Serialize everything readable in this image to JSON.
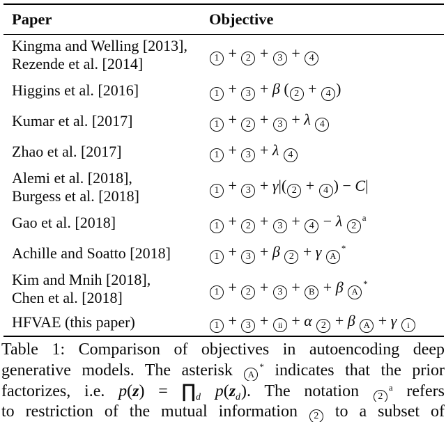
{
  "colors": {
    "background": "#ffffff",
    "text": "#0a0a0a",
    "rule": "#000000"
  },
  "table": {
    "headers": {
      "paper": "Paper",
      "objective": "Objective"
    },
    "rows": [
      {
        "paper_lines": [
          "Kingma and Welling [2013],",
          "Rezende et al. [2014]"
        ],
        "formula": [
          {
            "k": "c",
            "v": "1"
          },
          {
            "k": "txt",
            "v": " + "
          },
          {
            "k": "c",
            "v": "2"
          },
          {
            "k": "txt",
            "v": " + "
          },
          {
            "k": "c",
            "v": "3"
          },
          {
            "k": "txt",
            "v": " + "
          },
          {
            "k": "c",
            "v": "4"
          }
        ]
      },
      {
        "paper_lines": [
          "Higgins et al. [2016]"
        ],
        "formula": [
          {
            "k": "c",
            "v": "1"
          },
          {
            "k": "txt",
            "v": " + "
          },
          {
            "k": "c",
            "v": "3"
          },
          {
            "k": "txt",
            "v": " + "
          },
          {
            "k": "it",
            "v": "β"
          },
          {
            "k": "txt",
            "v": " ("
          },
          {
            "k": "c",
            "v": "2"
          },
          {
            "k": "txt",
            "v": " + "
          },
          {
            "k": "c",
            "v": "4"
          },
          {
            "k": "txt",
            "v": ")"
          }
        ]
      },
      {
        "paper_lines": [
          "Kumar et al. [2017]"
        ],
        "formula": [
          {
            "k": "c",
            "v": "1"
          },
          {
            "k": "txt",
            "v": " + "
          },
          {
            "k": "c",
            "v": "2"
          },
          {
            "k": "txt",
            "v": " + "
          },
          {
            "k": "c",
            "v": "3"
          },
          {
            "k": "txt",
            "v": " + "
          },
          {
            "k": "it",
            "v": "λ "
          },
          {
            "k": "c",
            "v": "4"
          }
        ]
      },
      {
        "paper_lines": [
          "Zhao et al. [2017]"
        ],
        "formula": [
          {
            "k": "c",
            "v": "1"
          },
          {
            "k": "txt",
            "v": " + "
          },
          {
            "k": "c",
            "v": "3"
          },
          {
            "k": "txt",
            "v": " + "
          },
          {
            "k": "it",
            "v": "λ "
          },
          {
            "k": "c",
            "v": "4"
          }
        ]
      },
      {
        "paper_lines": [
          "Alemi et al. [2018],",
          "Burgess et al. [2018]"
        ],
        "formula": [
          {
            "k": "c",
            "v": "1"
          },
          {
            "k": "txt",
            "v": " + "
          },
          {
            "k": "c",
            "v": "3"
          },
          {
            "k": "txt",
            "v": " + "
          },
          {
            "k": "it",
            "v": "γ"
          },
          {
            "k": "txt",
            "v": "|("
          },
          {
            "k": "c",
            "v": "2"
          },
          {
            "k": "txt",
            "v": " + "
          },
          {
            "k": "c",
            "v": "4"
          },
          {
            "k": "txt",
            "v": ") − "
          },
          {
            "k": "it",
            "v": "C"
          },
          {
            "k": "txt",
            "v": "|"
          }
        ]
      },
      {
        "paper_lines": [
          "Gao et al. [2018]"
        ],
        "formula": [
          {
            "k": "c",
            "v": "1"
          },
          {
            "k": "txt",
            "v": " + "
          },
          {
            "k": "c",
            "v": "2"
          },
          {
            "k": "txt",
            "v": " + "
          },
          {
            "k": "c",
            "v": "3"
          },
          {
            "k": "txt",
            "v": " + "
          },
          {
            "k": "c",
            "v": "4"
          },
          {
            "k": "txt",
            "v": " − "
          },
          {
            "k": "it",
            "v": "λ "
          },
          {
            "k": "c",
            "v": "2"
          },
          {
            "k": "sup",
            "v": "a"
          }
        ]
      },
      {
        "paper_lines": [
          "Achille and Soatto [2018]"
        ],
        "formula": [
          {
            "k": "c",
            "v": "1"
          },
          {
            "k": "txt",
            "v": " + "
          },
          {
            "k": "c",
            "v": "3"
          },
          {
            "k": "txt",
            "v": " + "
          },
          {
            "k": "it",
            "v": "β "
          },
          {
            "k": "c",
            "v": "2"
          },
          {
            "k": "txt",
            "v": " + "
          },
          {
            "k": "it",
            "v": "γ "
          },
          {
            "k": "c",
            "v": "A"
          },
          {
            "k": "sup",
            "v": "*"
          }
        ]
      },
      {
        "paper_lines": [
          "Kim and Mnih [2018],",
          "Chen et al. [2018]"
        ],
        "formula": [
          {
            "k": "c",
            "v": "1"
          },
          {
            "k": "txt",
            "v": " + "
          },
          {
            "k": "c",
            "v": "2"
          },
          {
            "k": "txt",
            "v": " + "
          },
          {
            "k": "c",
            "v": "3"
          },
          {
            "k": "txt",
            "v": " + "
          },
          {
            "k": "c",
            "v": "B"
          },
          {
            "k": "txt",
            "v": " + "
          },
          {
            "k": "it",
            "v": "β "
          },
          {
            "k": "c",
            "v": "A"
          },
          {
            "k": "sup",
            "v": "*"
          }
        ]
      },
      {
        "paper_lines": [
          "HFVAE (this paper)"
        ],
        "formula": [
          {
            "k": "c",
            "v": "1"
          },
          {
            "k": "txt",
            "v": " + "
          },
          {
            "k": "c",
            "v": "3"
          },
          {
            "k": "txt",
            "v": " + "
          },
          {
            "k": "c",
            "v": "ii"
          },
          {
            "k": "txt",
            "v": " + "
          },
          {
            "k": "it",
            "v": "α "
          },
          {
            "k": "c",
            "v": "2"
          },
          {
            "k": "txt",
            "v": " + "
          },
          {
            "k": "it",
            "v": "β "
          },
          {
            "k": "c",
            "v": "A"
          },
          {
            "k": "txt",
            "v": " + "
          },
          {
            "k": "it",
            "v": "γ "
          },
          {
            "k": "c",
            "v": "i"
          }
        ]
      }
    ]
  },
  "caption": {
    "lines": [
      [
        {
          "k": "txt",
          "v": "Table 1: Comparison of objectives in autoencoding deep"
        }
      ],
      [
        {
          "k": "txt",
          "v": "generative models. The asterisk "
        },
        {
          "k": "c",
          "v": "A"
        },
        {
          "k": "sup",
          "v": "*"
        },
        {
          "k": "txt",
          "v": " indicates that the prior"
        }
      ],
      [
        {
          "k": "txt",
          "v": "factorizes, i.e. "
        },
        {
          "k": "it",
          "v": "p"
        },
        {
          "k": "txt",
          "v": "("
        },
        {
          "k": "bi",
          "v": "z"
        },
        {
          "k": "txt",
          "v": ") = "
        },
        {
          "k": "prod",
          "v": "∏"
        },
        {
          "k": "sub",
          "v": "d"
        },
        {
          "k": "txt",
          "v": " "
        },
        {
          "k": "it",
          "v": "p"
        },
        {
          "k": "txt",
          "v": "("
        },
        {
          "k": "bi",
          "v": "z"
        },
        {
          "k": "sub",
          "v": "d"
        },
        {
          "k": "txt",
          "v": "). The notation "
        },
        {
          "k": "c",
          "v": "2"
        },
        {
          "k": "sup",
          "v": "a"
        },
        {
          "k": "txt",
          "v": " refers"
        }
      ],
      [
        {
          "k": "txt",
          "v": "to restriction of the mutual information "
        },
        {
          "k": "c",
          "v": "2"
        },
        {
          "k": "txt",
          "v": " to a subset of"
        }
      ]
    ]
  }
}
